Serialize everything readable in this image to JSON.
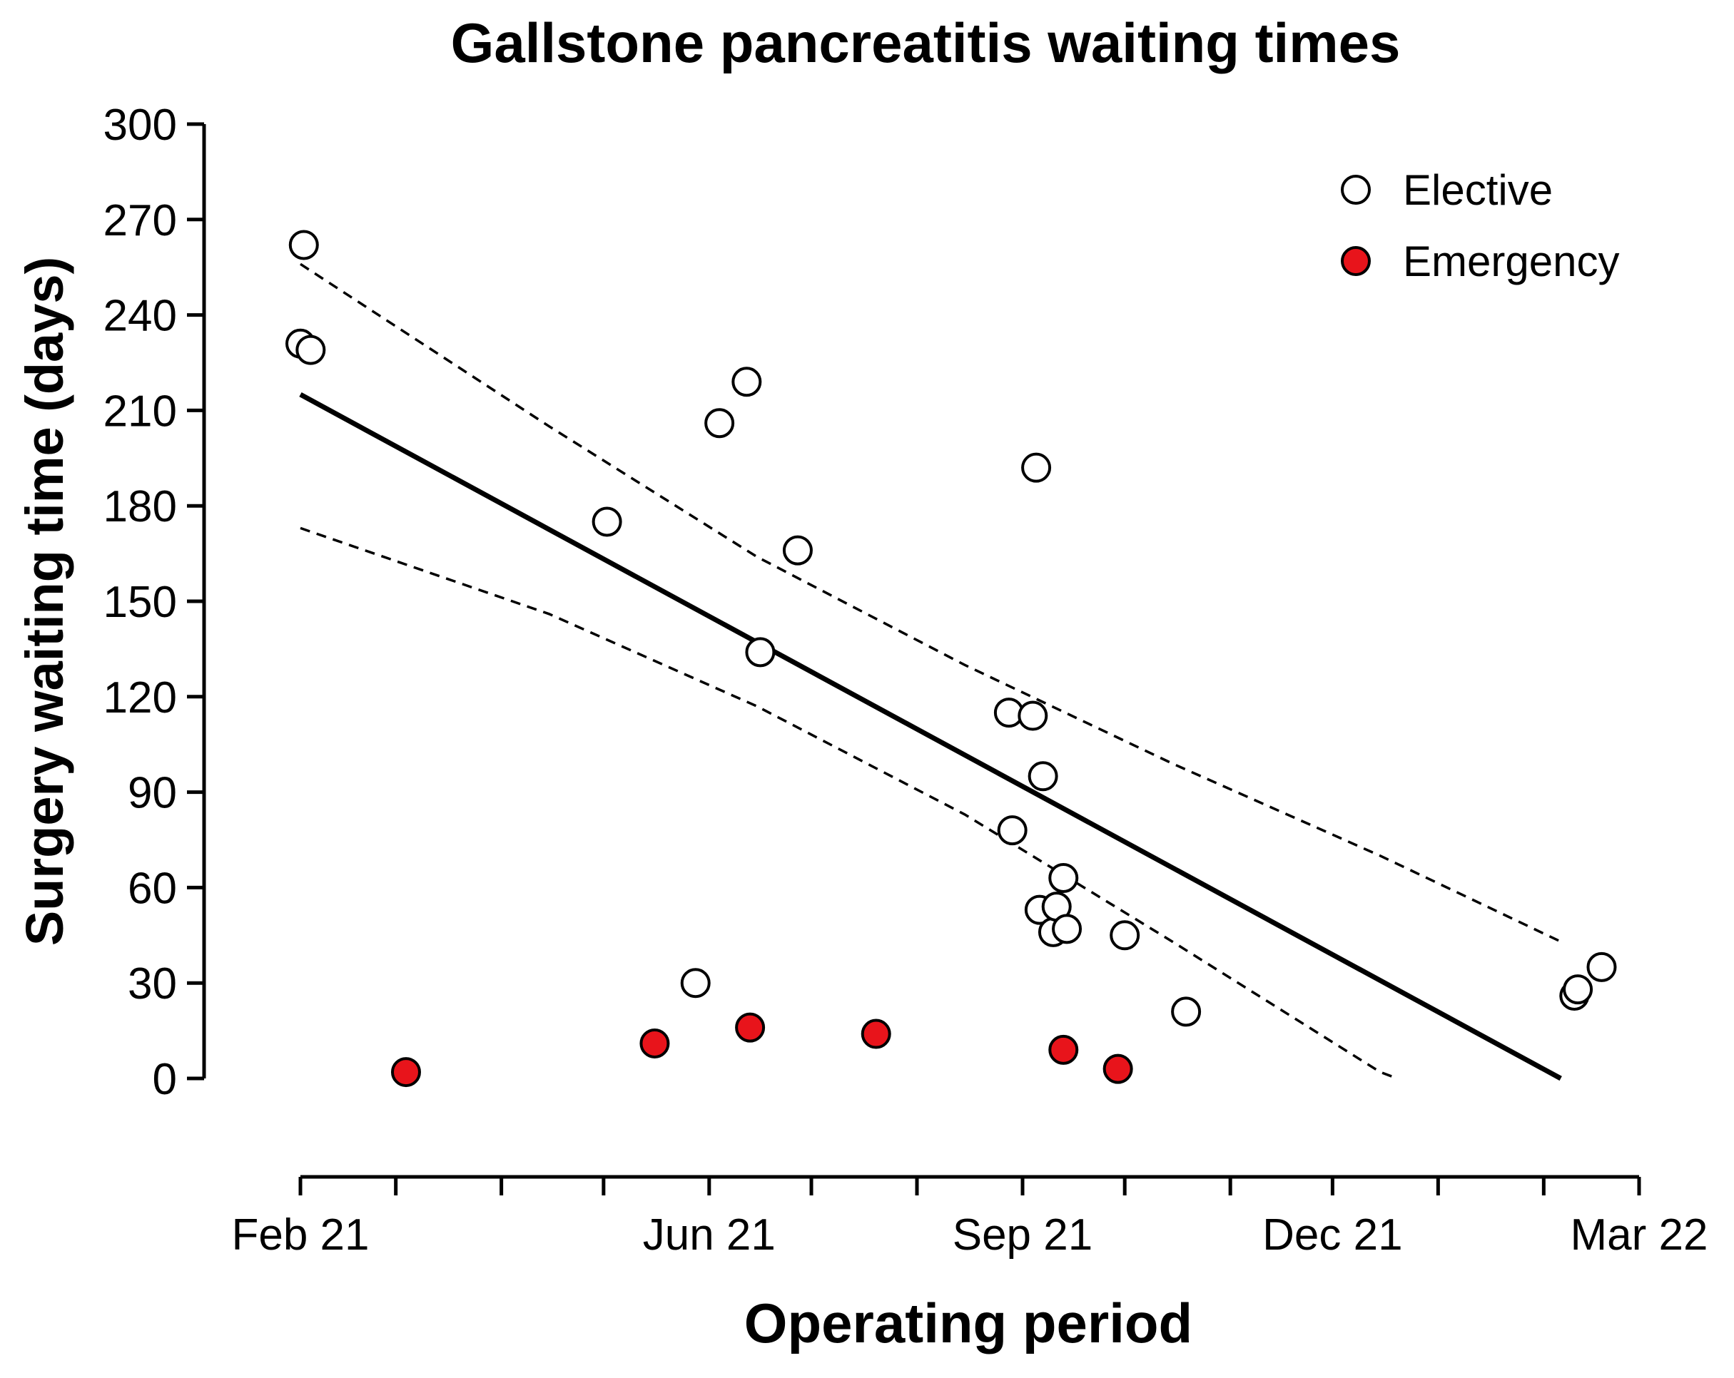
{
  "chart_data": {
    "type": "scatter",
    "title": "Gallstone pancreatitis waiting times",
    "xlabel": "Operating period",
    "ylabel": "Surgery waiting time (days)",
    "xlim": [
      "2021-02-01",
      "2022-03-01"
    ],
    "ylim": [
      0,
      300
    ],
    "yticks": [
      0,
      30,
      60,
      90,
      120,
      150,
      180,
      210,
      240,
      270,
      300
    ],
    "xticks": [
      {
        "date": "2021-02-01",
        "label": "Feb 21"
      },
      {
        "date": "2021-03-01",
        "label": ""
      },
      {
        "date": "2021-04-01",
        "label": ""
      },
      {
        "date": "2021-05-01",
        "label": ""
      },
      {
        "date": "2021-06-01",
        "label": "Jun 21"
      },
      {
        "date": "2021-07-01",
        "label": ""
      },
      {
        "date": "2021-08-01",
        "label": ""
      },
      {
        "date": "2021-09-01",
        "label": "Sep 21"
      },
      {
        "date": "2021-10-01",
        "label": ""
      },
      {
        "date": "2021-11-01",
        "label": ""
      },
      {
        "date": "2021-12-01",
        "label": "Dec 21"
      },
      {
        "date": "2022-01-01",
        "label": ""
      },
      {
        "date": "2022-02-01",
        "label": ""
      },
      {
        "date": "2022-03-01",
        "label": "Mar 22"
      }
    ],
    "grid": false,
    "legend_position": "top-right",
    "series": [
      {
        "name": "Elective",
        "marker": "open-circle",
        "color": "#ffffff",
        "edge_color": "#000000",
        "points": [
          {
            "x": "2021-02-01",
            "y": 231
          },
          {
            "x": "2021-02-02",
            "y": 262
          },
          {
            "x": "2021-02-04",
            "y": 229
          },
          {
            "x": "2021-05-02",
            "y": 175
          },
          {
            "x": "2021-05-28",
            "y": 30
          },
          {
            "x": "2021-06-04",
            "y": 206
          },
          {
            "x": "2021-06-12",
            "y": 219
          },
          {
            "x": "2021-06-16",
            "y": 134
          },
          {
            "x": "2021-06-27",
            "y": 166
          },
          {
            "x": "2021-08-28",
            "y": 115
          },
          {
            "x": "2021-08-29",
            "y": 78
          },
          {
            "x": "2021-09-04",
            "y": 114
          },
          {
            "x": "2021-09-05",
            "y": 192
          },
          {
            "x": "2021-09-06",
            "y": 53
          },
          {
            "x": "2021-09-07",
            "y": 95
          },
          {
            "x": "2021-09-10",
            "y": 46
          },
          {
            "x": "2021-09-11",
            "y": 54
          },
          {
            "x": "2021-09-13",
            "y": 63
          },
          {
            "x": "2021-09-14",
            "y": 47
          },
          {
            "x": "2021-10-01",
            "y": 45
          },
          {
            "x": "2021-10-19",
            "y": 21
          },
          {
            "x": "2022-02-10",
            "y": 26
          },
          {
            "x": "2022-02-11",
            "y": 28
          },
          {
            "x": "2022-02-18",
            "y": 35
          }
        ]
      },
      {
        "name": "Emergency",
        "marker": "filled-circle",
        "color": "#e8141b",
        "edge_color": "#000000",
        "points": [
          {
            "x": "2021-03-04",
            "y": 2
          },
          {
            "x": "2021-05-16",
            "y": 11
          },
          {
            "x": "2021-06-13",
            "y": 16
          },
          {
            "x": "2021-07-20",
            "y": 14
          },
          {
            "x": "2021-09-13",
            "y": 9
          },
          {
            "x": "2021-09-29",
            "y": 3
          }
        ]
      }
    ],
    "fit": {
      "line_style": "solid",
      "color": "#000000",
      "points": [
        {
          "x": "2021-02-01",
          "y": 215
        },
        {
          "x": "2022-02-06",
          "y": 0
        }
      ]
    },
    "confidence_band": {
      "line_style": "dashed",
      "color": "#000000",
      "upper": [
        {
          "x": "2021-02-01",
          "y": 256
        },
        {
          "x": "2021-04-15",
          "y": 205
        },
        {
          "x": "2021-06-15",
          "y": 164
        },
        {
          "x": "2021-08-15",
          "y": 130
        },
        {
          "x": "2021-10-15",
          "y": 99
        },
        {
          "x": "2021-12-15",
          "y": 70
        },
        {
          "x": "2022-02-06",
          "y": 43
        }
      ],
      "lower": [
        {
          "x": "2021-02-01",
          "y": 173
        },
        {
          "x": "2021-04-15",
          "y": 146
        },
        {
          "x": "2021-06-15",
          "y": 117
        },
        {
          "x": "2021-08-15",
          "y": 83
        },
        {
          "x": "2021-10-15",
          "y": 43
        },
        {
          "x": "2021-12-15",
          "y": 2
        },
        {
          "x": "2021-12-20",
          "y": 0
        }
      ]
    }
  }
}
